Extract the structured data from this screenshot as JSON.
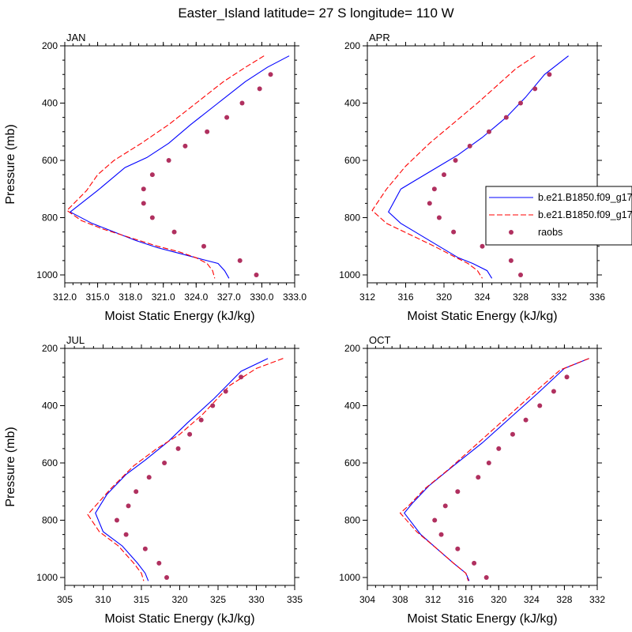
{
  "title": "Easter_Island  latitude= 27 S longitude= 110 W",
  "colors": {
    "model_1": "#0000ff",
    "model_2": "#ff0000",
    "raobs": "#b0305f"
  },
  "legend": {
    "entries": [
      {
        "label": "b.e21.B1850.f09_g17",
        "style": "solid-line",
        "color": "#0000ff"
      },
      {
        "label": "b.e21.B1850.f09_g17",
        "style": "dashed-line",
        "color": "#ff0000"
      },
      {
        "label": "raobs",
        "style": "dot",
        "color": "#b0305f"
      }
    ]
  },
  "chart_data": [
    {
      "type": "line",
      "title": "JAN",
      "xlabel": "Moist Static Energy (kJ/kg)",
      "ylabel": "Pressure (mb)",
      "xlim": [
        312,
        333
      ],
      "ylim": [
        1025,
        230
      ],
      "xticks": [
        312,
        315,
        318,
        321,
        324,
        327,
        330,
        333
      ],
      "xtick_labels": [
        "312.0",
        "315.0",
        "318.0",
        "321.0",
        "324.0",
        "327.0",
        "330.0",
        "333.0"
      ],
      "yticks": [
        200,
        400,
        600,
        800,
        1000
      ],
      "ytick_labels": [
        "200",
        "400",
        "600",
        "800",
        "1000"
      ],
      "series": [
        {
          "name": "b.e21.B1850.f09_g17",
          "style": "solid",
          "color": "#0000ff",
          "x": [
            332.5,
            330.5,
            328.5,
            326.0,
            323.5,
            321.5,
            319.5,
            317.5,
            315.0,
            312.5,
            314.5,
            316.5,
            318.5,
            320.5,
            322.5,
            324.5,
            326.0,
            326.6,
            327.0
          ],
          "y": [
            235,
            275,
            325,
            400,
            475,
            540,
            590,
            625,
            705,
            780,
            820,
            850,
            880,
            905,
            925,
            945,
            960,
            985,
            1012
          ]
        },
        {
          "name": "b.e21.B1850.f09_g17",
          "style": "dashed",
          "color": "#ff0000",
          "x": [
            330.2,
            328.5,
            326.5,
            324.0,
            321.5,
            319.0,
            316.5,
            315.0,
            314.0,
            312.2,
            313.5,
            315.5,
            318.0,
            320.5,
            322.5,
            324.0,
            325.0,
            325.5,
            325.7
          ],
          "y": [
            235,
            275,
            325,
            400,
            475,
            540,
            600,
            650,
            705,
            775,
            810,
            840,
            870,
            900,
            920,
            940,
            960,
            985,
            1012
          ]
        },
        {
          "name": "raobs",
          "style": "markers",
          "color": "#b0305f",
          "x": [
            330.8,
            329.8,
            328.2,
            326.8,
            325.0,
            323.0,
            321.5,
            320.0,
            319.2,
            319.2,
            320.0,
            322.0,
            324.7,
            328.0,
            329.5
          ],
          "y": [
            300,
            350,
            400,
            450,
            500,
            550,
            600,
            650,
            700,
            750,
            800,
            850,
            900,
            950,
            1000
          ]
        }
      ]
    },
    {
      "type": "line",
      "title": "APR",
      "xlabel": "Moist Static Energy (kJ/kg)",
      "ylabel": "Pressure (mb)",
      "xlim": [
        312,
        336
      ],
      "ylim": [
        1025,
        230
      ],
      "xticks": [
        312,
        316,
        320,
        324,
        328,
        332,
        336
      ],
      "xtick_labels": [
        "312",
        "316",
        "320",
        "324",
        "328",
        "332",
        "336"
      ],
      "yticks": [
        200,
        400,
        600,
        800,
        1000
      ],
      "ytick_labels": [
        "200",
        "400",
        "600",
        "800",
        "1000"
      ],
      "series": [
        {
          "name": "b.e21.B1850.f09_g17",
          "style": "solid",
          "color": "#0000ff",
          "x": [
            333.0,
            330.5,
            328.5,
            326.5,
            324.0,
            321.5,
            319.0,
            317.0,
            315.5,
            314.2,
            315.5,
            317.5,
            319.5,
            321.5,
            323.0,
            324.5,
            325.0
          ],
          "y": [
            235,
            300,
            380,
            450,
            520,
            580,
            630,
            670,
            700,
            780,
            820,
            860,
            900,
            940,
            960,
            985,
            1012
          ]
        },
        {
          "name": "b.e21.B1850.f09_g17",
          "style": "dashed",
          "color": "#ff0000",
          "x": [
            329.5,
            327.5,
            325.5,
            323.5,
            321.0,
            318.5,
            316.0,
            314.0,
            312.5,
            314.0,
            316.5,
            319.0,
            321.0,
            322.5,
            323.5,
            324.0
          ],
          "y": [
            235,
            280,
            340,
            400,
            470,
            540,
            620,
            700,
            775,
            820,
            860,
            900,
            935,
            960,
            985,
            1012
          ]
        },
        {
          "name": "raobs",
          "style": "markers",
          "color": "#b0305f",
          "x": [
            331.0,
            329.5,
            328.0,
            326.5,
            324.7,
            322.7,
            321.2,
            320.0,
            319.0,
            318.5,
            319.5,
            321.0,
            324.0,
            327.0,
            328.0
          ],
          "y": [
            300,
            350,
            400,
            450,
            500,
            550,
            600,
            650,
            700,
            750,
            800,
            850,
            900,
            950,
            1000
          ]
        }
      ]
    },
    {
      "type": "line",
      "title": "JUL",
      "xlabel": "Moist Static Energy (kJ/kg)",
      "ylabel": "Pressure (mb)",
      "xlim": [
        305,
        335
      ],
      "ylim": [
        1025,
        230
      ],
      "xticks": [
        305,
        310,
        315,
        320,
        325,
        330,
        335
      ],
      "xtick_labels": [
        "305",
        "310",
        "315",
        "320",
        "325",
        "330",
        "335"
      ],
      "yticks": [
        200,
        400,
        600,
        800,
        1000
      ],
      "ytick_labels": [
        "200",
        "400",
        "600",
        "800",
        "1000"
      ],
      "series": [
        {
          "name": "b.e21.B1850.f09_g17",
          "style": "solid",
          "color": "#0000ff",
          "x": [
            331.5,
            328.0,
            324.5,
            321.0,
            318.5,
            315.5,
            313.0,
            310.5,
            309.0,
            310.0,
            312.5,
            314.5,
            315.5,
            315.9
          ],
          "y": [
            235,
            280,
            375,
            460,
            525,
            590,
            640,
            710,
            775,
            840,
            890,
            950,
            985,
            1012
          ]
        },
        {
          "name": "b.e21.B1850.f09_g17",
          "style": "dashed",
          "color": "#ff0000",
          "x": [
            333.5,
            330.0,
            326.5,
            323.0,
            320.0,
            317.0,
            314.0,
            311.0,
            308.0,
            309.5,
            312.0,
            314.0,
            315.0,
            315.3
          ],
          "y": [
            235,
            270,
            330,
            430,
            500,
            550,
            610,
            690,
            780,
            840,
            890,
            950,
            985,
            1012
          ]
        },
        {
          "name": "raobs",
          "style": "markers",
          "color": "#b0305f",
          "x": [
            328.0,
            326.0,
            324.3,
            322.8,
            321.3,
            319.8,
            318.0,
            316.0,
            314.3,
            313.3,
            311.8,
            313.0,
            315.5,
            317.3,
            318.3
          ],
          "y": [
            300,
            350,
            400,
            450,
            500,
            550,
            600,
            650,
            700,
            750,
            800,
            850,
            900,
            950,
            1000
          ]
        }
      ]
    },
    {
      "type": "line",
      "title": "OCT",
      "xlabel": "Moist Static Energy (kJ/kg)",
      "ylabel": "Pressure (mb)",
      "xlim": [
        304,
        332
      ],
      "ylim": [
        1025,
        230
      ],
      "xticks": [
        304,
        308,
        312,
        316,
        320,
        324,
        328,
        332
      ],
      "xtick_labels": [
        "304",
        "308",
        "312",
        "316",
        "320",
        "324",
        "328",
        "332"
      ],
      "yticks": [
        200,
        400,
        600,
        800,
        1000
      ],
      "ytick_labels": [
        "200",
        "400",
        "600",
        "800",
        "1000"
      ],
      "series": [
        {
          "name": "b.e21.B1850.f09_g17",
          "style": "solid",
          "color": "#0000ff",
          "x": [
            331.0,
            328.0,
            325.0,
            321.5,
            318.0,
            314.5,
            311.5,
            309.5,
            308.5,
            310.5,
            312.5,
            314.5,
            316.0,
            316.4
          ],
          "y": [
            235,
            270,
            350,
            440,
            530,
            610,
            680,
            740,
            775,
            850,
            900,
            950,
            985,
            1012
          ]
        },
        {
          "name": "b.e21.B1850.f09_g17",
          "style": "dashed",
          "color": "#ff0000",
          "x": [
            331.0,
            327.5,
            324.5,
            321.0,
            317.5,
            314.0,
            311.0,
            309.0,
            308.0,
            310.0,
            312.5,
            314.5,
            316.0,
            316.3
          ],
          "y": [
            235,
            275,
            350,
            440,
            530,
            620,
            690,
            750,
            775,
            840,
            900,
            950,
            985,
            1012
          ]
        },
        {
          "name": "raobs",
          "style": "markers",
          "color": "#b0305f",
          "x": [
            328.3,
            326.7,
            325.0,
            323.3,
            321.7,
            320.0,
            318.8,
            317.5,
            315.0,
            313.5,
            312.2,
            313.0,
            315.0,
            317.0,
            318.5
          ],
          "y": [
            300,
            350,
            400,
            450,
            500,
            550,
            600,
            650,
            700,
            750,
            800,
            850,
            900,
            950,
            1000
          ]
        }
      ]
    }
  ]
}
